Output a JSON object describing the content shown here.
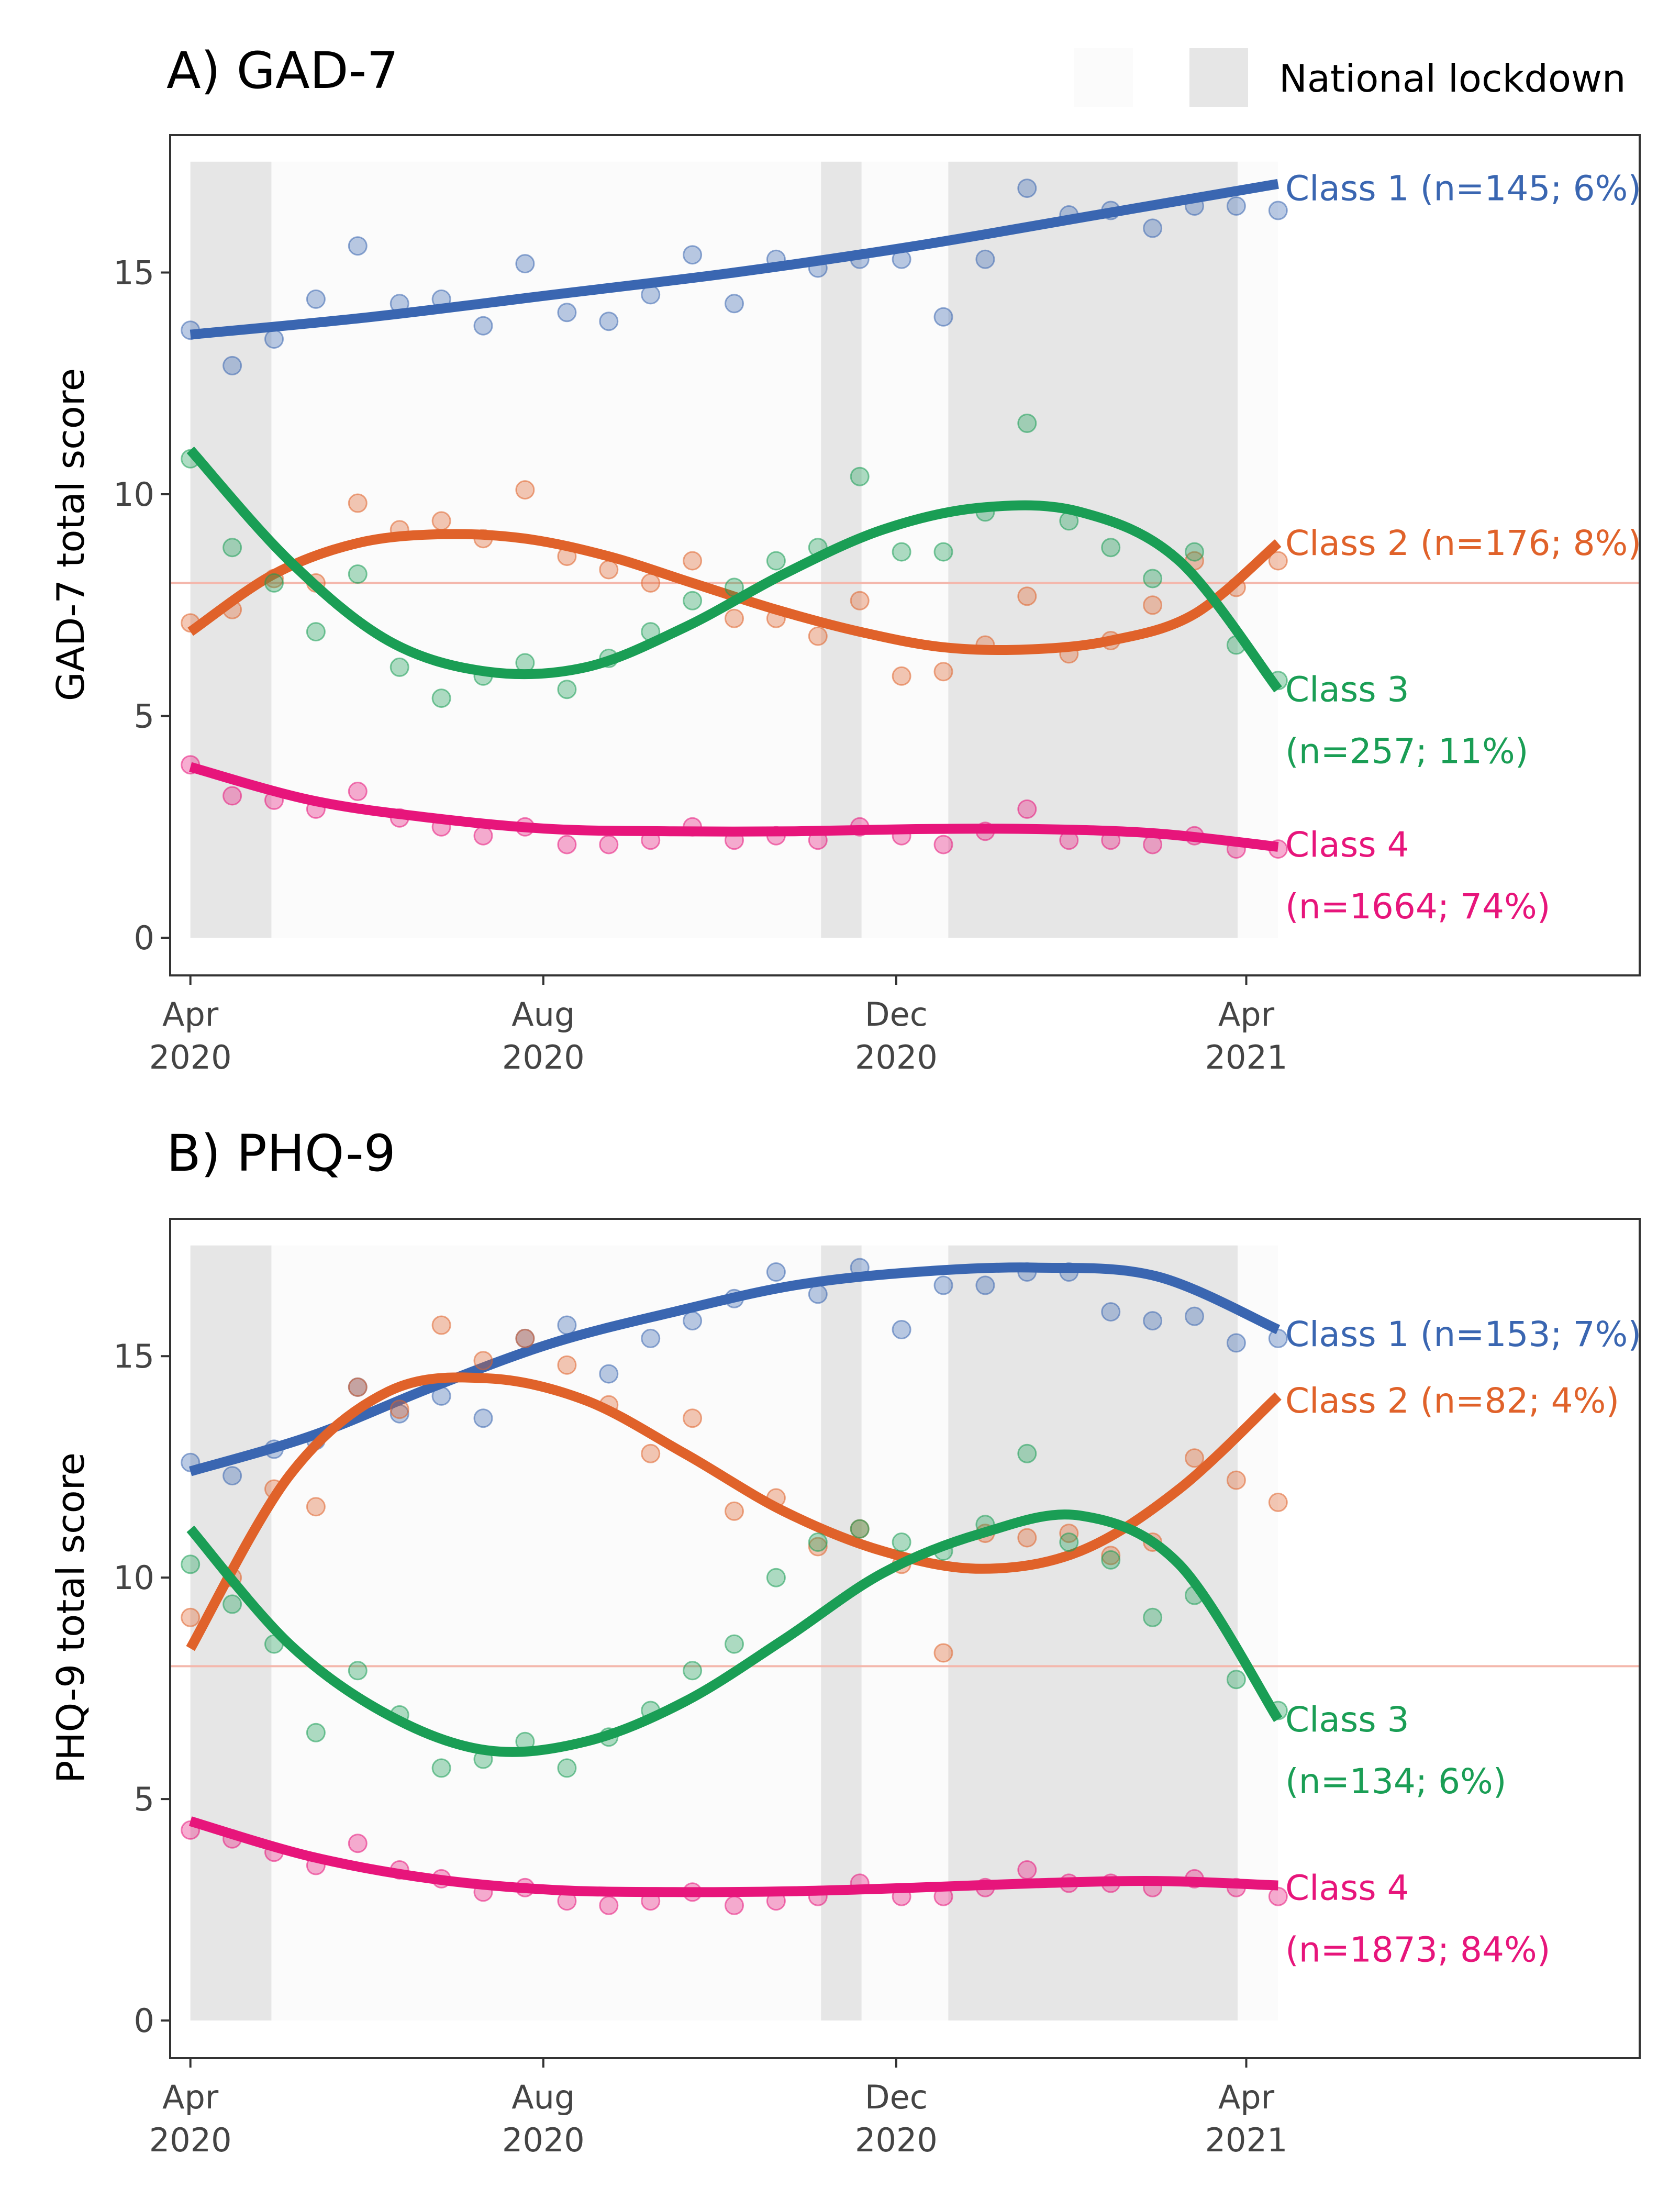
{
  "legend": {
    "label": "National lockdown",
    "items": [
      {
        "name": "no-lockdown",
        "fill": "#fbfbfb"
      },
      {
        "name": "national-lockdown",
        "fill": "#e6e6e6"
      }
    ]
  },
  "colors": {
    "class1": "#3a66b1",
    "class2": "#e0622a",
    "class3": "#1a9e55",
    "class4": "#e7157b",
    "threshold": "#f4b7ac",
    "lockdown": "#e6e6e6",
    "study_period": "#fbfbfb"
  },
  "chart_data": [
    {
      "type": "line",
      "title": "A) GAD-7",
      "xlabel": "",
      "ylabel": "GAD-7 total score",
      "xlim": [
        "2020-03-25",
        "2021-08-15"
      ],
      "ylim": [
        -0.85,
        18.1
      ],
      "x_ticks": [
        {
          "date": "2020-04-01",
          "label": [
            "Apr",
            "2020"
          ]
        },
        {
          "date": "2020-08-01",
          "label": [
            "Aug",
            "2020"
          ]
        },
        {
          "date": "2020-12-01",
          "label": [
            "Dec",
            "2020"
          ]
        },
        {
          "date": "2021-04-01",
          "label": [
            "Apr",
            "2021"
          ]
        }
      ],
      "y_ticks": [
        0,
        5,
        10,
        15
      ],
      "threshold": 8,
      "shaded_period": [
        "2020-04-01",
        "2021-04-12"
      ],
      "lockdowns": [
        [
          "2020-04-01",
          "2020-04-29"
        ],
        [
          "2020-11-05",
          "2020-11-19"
        ],
        [
          "2020-12-19",
          "2021-03-29"
        ]
      ],
      "series": [
        {
          "name": "Class 1 (n=145; 6%)",
          "label_lines": [
            "Class 1 (n=145; 6%)"
          ],
          "label_y": 16.9,
          "color_key": "class1",
          "points": [
            13.7,
            12.9,
            13.5,
            14.4,
            15.6,
            14.3,
            14.4,
            13.8,
            15.2,
            14.1,
            13.9,
            14.5,
            15.4,
            14.3,
            15.3,
            15.1,
            15.3,
            15.3,
            14.0,
            15.3,
            16.9,
            16.3,
            16.4,
            16.0,
            16.5,
            16.5,
            16.4
          ],
          "fit": [
            13.6,
            14.0,
            14.5,
            15.0,
            15.6,
            16.3,
            17.0
          ]
        },
        {
          "name": "Class 2 (n=176; 8%)",
          "label_lines": [
            "Class 2 (n=176; 8%)"
          ],
          "label_y": 8.9,
          "color_key": "class2",
          "points": [
            7.1,
            7.4,
            8.1,
            8.0,
            9.8,
            9.2,
            9.4,
            9.0,
            10.1,
            8.6,
            8.3,
            8.0,
            8.5,
            7.2,
            7.2,
            6.8,
            7.6,
            5.9,
            6.0,
            6.6,
            7.7,
            6.4,
            6.7,
            7.5,
            8.5,
            7.9,
            8.5
          ],
          "fit": [
            6.9,
            8.2,
            8.9,
            9.1,
            9.0,
            8.6,
            8.0,
            7.4,
            6.9,
            6.55,
            6.5,
            6.7,
            7.3,
            8.9
          ]
        },
        {
          "name": "Class 3 (n=257; 11%)",
          "label_lines": [
            "Class 3",
            "(n=257; 11%)"
          ],
          "label_y": 5.6,
          "color_key": "class3",
          "points": [
            10.8,
            8.8,
            8.0,
            6.9,
            8.2,
            6.1,
            5.4,
            5.9,
            6.2,
            5.6,
            6.3,
            6.9,
            7.6,
            7.9,
            8.5,
            8.8,
            10.4,
            8.7,
            8.7,
            9.6,
            11.6,
            9.4,
            8.8,
            8.1,
            8.7,
            6.6,
            5.8
          ],
          "fit": [
            11.0,
            8.5,
            6.7,
            6.0,
            6.1,
            7.0,
            8.2,
            9.2,
            9.7,
            9.6,
            8.5,
            5.6
          ]
        },
        {
          "name": "Class 4 (n=1664; 74%)",
          "label_lines": [
            "Class 4",
            "(n=1664; 74%)"
          ],
          "label_y": 2.1,
          "color_key": "class4",
          "points": [
            3.9,
            3.2,
            3.1,
            2.9,
            3.3,
            2.7,
            2.5,
            2.3,
            2.5,
            2.1,
            2.1,
            2.2,
            2.5,
            2.2,
            2.3,
            2.2,
            2.5,
            2.3,
            2.1,
            2.4,
            2.9,
            2.2,
            2.2,
            2.1,
            2.3,
            2.0,
            2.0
          ],
          "fit": [
            3.85,
            3.1,
            2.7,
            2.45,
            2.4,
            2.4,
            2.45,
            2.45,
            2.35,
            2.05
          ]
        }
      ]
    },
    {
      "type": "line",
      "title": "B) PHQ-9",
      "xlabel": "",
      "ylabel": "PHQ-9 total score",
      "xlim": [
        "2020-03-25",
        "2021-08-15"
      ],
      "ylim": [
        -0.85,
        18.1
      ],
      "x_ticks": [
        {
          "date": "2020-04-01",
          "label": [
            "Apr",
            "2020"
          ]
        },
        {
          "date": "2020-08-01",
          "label": [
            "Aug",
            "2020"
          ]
        },
        {
          "date": "2020-12-01",
          "label": [
            "Dec",
            "2020"
          ]
        },
        {
          "date": "2021-04-01",
          "label": [
            "Apr",
            "2021"
          ]
        }
      ],
      "y_ticks": [
        0,
        5,
        10,
        15
      ],
      "threshold": 8,
      "shaded_period": [
        "2020-04-01",
        "2021-04-12"
      ],
      "lockdowns": [
        [
          "2020-04-01",
          "2020-04-29"
        ],
        [
          "2020-11-05",
          "2020-11-19"
        ],
        [
          "2020-12-19",
          "2021-03-29"
        ]
      ],
      "series": [
        {
          "name": "Class 1 (n=153; 7%)",
          "label_lines": [
            "Class 1 (n=153; 7%)"
          ],
          "label_y": 15.5,
          "color_key": "class1",
          "points": [
            12.6,
            12.3,
            12.9,
            13.1,
            14.3,
            13.7,
            14.1,
            13.6,
            15.4,
            15.7,
            14.6,
            15.4,
            15.8,
            16.3,
            16.9,
            16.4,
            17.0,
            15.6,
            16.6,
            16.6,
            16.9,
            16.9,
            16.0,
            15.8,
            15.9,
            15.3,
            15.4
          ],
          "fit": [
            12.4,
            13.2,
            14.3,
            15.3,
            16.0,
            16.6,
            16.9,
            17.0,
            16.8,
            15.6
          ]
        },
        {
          "name": "Class 2 (n=82; 4%)",
          "label_lines": [
            "Class 2 (n=82; 4%)"
          ],
          "label_y": 14.0,
          "color_key": "class2",
          "points": [
            9.1,
            10.0,
            12.0,
            11.6,
            14.3,
            13.8,
            15.7,
            14.9,
            15.4,
            14.8,
            13.9,
            12.8,
            13.6,
            11.5,
            11.8,
            10.7,
            11.1,
            10.3,
            8.3,
            11.0,
            10.9,
            11.0,
            10.5,
            10.8,
            12.7,
            12.2,
            11.7
          ],
          "fit": [
            8.4,
            12.3,
            14.2,
            14.5,
            14.0,
            12.8,
            11.5,
            10.6,
            10.2,
            10.6,
            12.0,
            14.1
          ]
        },
        {
          "name": "Class 3 (n=134; 6%)",
          "label_lines": [
            "Class 3",
            "(n=134; 6%)"
          ],
          "label_y": 6.8,
          "color_key": "class3",
          "points": [
            10.3,
            9.4,
            8.5,
            6.5,
            7.9,
            6.9,
            5.7,
            5.9,
            6.3,
            5.7,
            6.4,
            7.0,
            7.9,
            8.5,
            10.0,
            10.8,
            11.1,
            10.8,
            10.6,
            11.2,
            12.8,
            10.8,
            10.4,
            9.1,
            9.6,
            7.7,
            7.0
          ],
          "fit": [
            11.1,
            8.5,
            6.9,
            6.1,
            6.3,
            7.2,
            8.6,
            10.1,
            11.0,
            11.4,
            10.3,
            6.8
          ]
        },
        {
          "name": "Class 4 (n=1873; 84%)",
          "label_lines": [
            "Class 4",
            "(n=1873; 84%)"
          ],
          "label_y": 3.0,
          "color_key": "class4",
          "points": [
            4.3,
            4.1,
            3.8,
            3.5,
            4.0,
            3.4,
            3.2,
            2.9,
            3.0,
            2.7,
            2.6,
            2.7,
            2.9,
            2.6,
            2.7,
            2.8,
            3.1,
            2.8,
            2.8,
            3.0,
            3.4,
            3.1,
            3.1,
            3.0,
            3.2,
            3.0,
            2.8
          ],
          "fit": [
            4.5,
            3.7,
            3.2,
            2.95,
            2.9,
            2.92,
            3.0,
            3.1,
            3.15,
            3.05
          ]
        }
      ]
    }
  ]
}
